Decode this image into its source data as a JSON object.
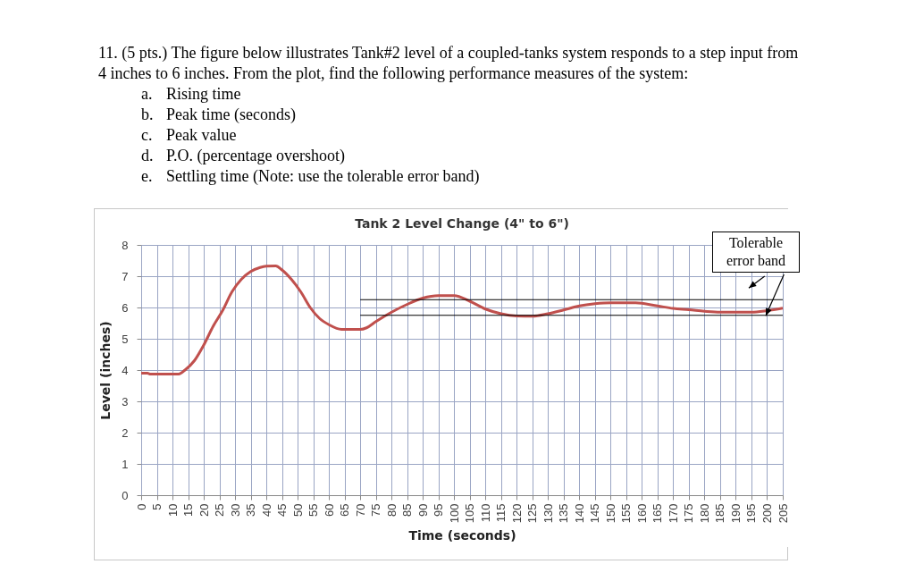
{
  "chart_data": {
    "type": "line",
    "title": "Tank 2 Level Change (4\" to 6\")",
    "xlabel": "Time (seconds)",
    "ylabel": "Level (inches)",
    "annotations": [
      "11. (5 pts.) The figure below illustrates Tank#2 level of a coupled-tanks system responds to a step input from 4 inches to 6 inches.  From the plot, find the following performance measures of the system:",
      "a.\tRising time",
      "b.\tPeak time (seconds)",
      "c.\tPeak value",
      "d.\tP.O. (percentage overshoot)",
      "e.\tSettling time (Note: use the tolerable error band)",
      {
        "text": "Tolerable error band",
        "x": 195,
        "y": 6.25
      }
    ],
    "xlim": [
      0,
      205
    ],
    "xticks": [
      0,
      5,
      10,
      15,
      20,
      25,
      30,
      35,
      40,
      45,
      50,
      55,
      60,
      65,
      70,
      75,
      80,
      85,
      90,
      95,
      100,
      105,
      110,
      115,
      120,
      125,
      130,
      135,
      140,
      145,
      150,
      155,
      160,
      165,
      170,
      175,
      180,
      185,
      190,
      195,
      200,
      205
    ],
    "ylim": [
      0,
      8
    ],
    "yticks": [
      0,
      1,
      2,
      3,
      4,
      5,
      6,
      7,
      8
    ],
    "grid": true,
    "line_style": "solid",
    "series": [
      {
        "color": "#c0504d",
        "x": [
          0,
          2,
          3,
          12,
          14,
          17,
          20,
          23,
          26,
          29,
          32,
          35,
          38,
          40,
          43,
          45,
          48,
          51,
          54,
          57,
          60,
          64,
          70,
          72,
          75,
          80,
          85,
          90,
          95,
          100,
          105,
          110,
          115,
          120,
          125,
          130,
          135,
          140,
          145,
          150,
          158,
          165,
          170,
          175,
          180,
          185,
          195,
          200,
          205
        ],
        "values": [
          3.9,
          3.9,
          3.87,
          3.87,
          4.0,
          4.3,
          4.8,
          5.4,
          5.9,
          6.5,
          6.9,
          7.15,
          7.28,
          7.32,
          7.33,
          7.2,
          6.9,
          6.5,
          6.0,
          5.65,
          5.45,
          5.3,
          5.3,
          5.35,
          5.55,
          5.85,
          6.1,
          6.3,
          6.38,
          6.38,
          6.2,
          5.95,
          5.8,
          5.73,
          5.72,
          5.8,
          5.92,
          6.05,
          6.12,
          6.15,
          6.15,
          6.05,
          5.97,
          5.93,
          5.88,
          5.85,
          5.85,
          5.9,
          5.98
        ]
      },
      {
        "color": "#000000",
        "x": [
          70,
          205
        ],
        "values": [
          6.25,
          6.25
        ]
      },
      {
        "color": "#000000",
        "x": [
          70,
          205
        ],
        "values": [
          5.75,
          5.75
        ]
      }
    ]
  }
}
